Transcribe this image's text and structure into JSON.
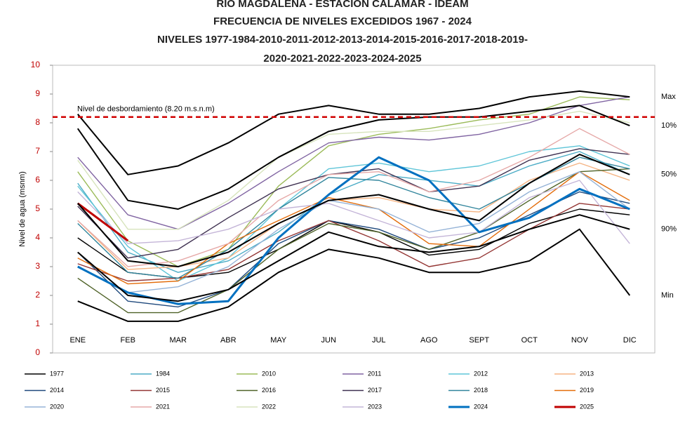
{
  "chart_data": {
    "type": "line",
    "title": [
      "RIO MAGDALENA - ESTACION CALAMAR - IDEAM",
      "FRECUENCIA DE NIVELES EXCEDIDOS 1967 - 2024",
      "NIVELES 1977-1984-2010-2011-2012-2013-2014-2015-2016-2017-2018-2019-",
      "2020-2021-2022-2023-2024-2025"
    ],
    "y_label": "Nivel de agua (msnm)",
    "categories": [
      "ENE",
      "FEB",
      "MAR",
      "ABR",
      "MAY",
      "JUN",
      "JUL",
      "AGO",
      "SEPT",
      "OCT",
      "NOV",
      "DIC"
    ],
    "ylim": [
      0,
      10
    ],
    "yticks": [
      0,
      1,
      2,
      3,
      4,
      5,
      6,
      7,
      8,
      9,
      10
    ],
    "threshold": 8.2,
    "threshold_label": "Nivel de desbordamiento (8.20 m.s.n.m)",
    "threshold_color": "#d00000",
    "reference_series": [
      {
        "name": "Max",
        "color": "#000000",
        "values": [
          8.3,
          6.2,
          6.5,
          7.3,
          8.3,
          8.6,
          8.3,
          8.3,
          8.5,
          8.9,
          9.1,
          8.9
        ]
      },
      {
        "name": "10%",
        "color": "#000000",
        "values": [
          7.8,
          5.3,
          5.0,
          5.7,
          6.8,
          7.7,
          8.1,
          8.2,
          8.2,
          8.4,
          8.6,
          7.9
        ]
      },
      {
        "name": "50%",
        "color": "#000000",
        "values": [
          5.2,
          3.2,
          3.0,
          3.5,
          4.5,
          5.3,
          5.5,
          5.0,
          4.6,
          5.9,
          6.9,
          6.2
        ]
      },
      {
        "name": "90%",
        "color": "#000000",
        "values": [
          3.5,
          2.0,
          1.8,
          2.2,
          3.2,
          4.2,
          3.7,
          3.5,
          3.7,
          4.3,
          4.8,
          4.3
        ]
      },
      {
        "name": "Min",
        "color": "#000000",
        "values": [
          1.8,
          1.1,
          1.1,
          1.6,
          2.8,
          3.6,
          3.3,
          2.8,
          2.8,
          3.2,
          4.3,
          2.0
        ]
      }
    ],
    "series": [
      {
        "name": "1977",
        "color": "#000000",
        "values": [
          4.0,
          2.8,
          2.6,
          2.8,
          3.6,
          4.6,
          4.2,
          3.4,
          3.6,
          4.5,
          5.0,
          4.8
        ]
      },
      {
        "name": "1984",
        "color": "#4bacc6",
        "values": [
          5.9,
          3.5,
          2.8,
          3.2,
          4.2,
          5.5,
          6.2,
          6.0,
          5.8,
          6.5,
          7.0,
          6.2
        ]
      },
      {
        "name": "2010",
        "color": "#9bbb59",
        "values": [
          6.3,
          3.9,
          3.0,
          3.6,
          5.8,
          7.2,
          7.6,
          7.8,
          8.1,
          8.3,
          8.9,
          8.8
        ]
      },
      {
        "name": "2011",
        "color": "#8064a2",
        "values": [
          6.8,
          4.8,
          4.3,
          5.2,
          6.3,
          7.3,
          7.5,
          7.4,
          7.6,
          8.0,
          8.6,
          8.9
        ]
      },
      {
        "name": "2012",
        "color": "#5fc5d8",
        "values": [
          5.8,
          3.7,
          2.5,
          3.3,
          5.0,
          6.4,
          6.6,
          6.3,
          6.5,
          7.0,
          7.2,
          6.5
        ]
      },
      {
        "name": "2013",
        "color": "#f5b483",
        "values": [
          4.6,
          2.9,
          3.0,
          3.3,
          4.5,
          5.3,
          5.4,
          5.0,
          4.9,
          6.0,
          6.6,
          6.0
        ]
      },
      {
        "name": "2014",
        "color": "#1f497d",
        "values": [
          3.5,
          1.8,
          1.6,
          2.2,
          3.8,
          4.6,
          4.3,
          3.6,
          4.0,
          4.8,
          5.6,
          5.2
        ]
      },
      {
        "name": "2015",
        "color": "#943634",
        "values": [
          3.1,
          2.5,
          2.6,
          2.9,
          3.9,
          4.6,
          3.9,
          3.0,
          3.3,
          4.3,
          5.2,
          5.0
        ]
      },
      {
        "name": "2016",
        "color": "#4f6228",
        "values": [
          2.6,
          1.4,
          1.4,
          2.2,
          3.6,
          4.5,
          4.2,
          3.6,
          4.2,
          5.3,
          6.3,
          6.4
        ]
      },
      {
        "name": "2017",
        "color": "#3f3151",
        "values": [
          5.1,
          3.3,
          3.6,
          4.7,
          5.7,
          6.2,
          6.4,
          5.6,
          5.8,
          6.7,
          7.1,
          6.9
        ]
      },
      {
        "name": "2018",
        "color": "#31859c",
        "values": [
          4.5,
          2.8,
          2.6,
          3.6,
          5.0,
          6.1,
          6.0,
          5.4,
          5.0,
          5.9,
          6.8,
          6.4
        ]
      },
      {
        "name": "2019",
        "color": "#e36c09",
        "values": [
          3.3,
          2.4,
          2.5,
          3.8,
          4.6,
          5.4,
          5.0,
          3.8,
          3.7,
          5.0,
          6.3,
          5.3
        ]
      },
      {
        "name": "2020",
        "color": "#95b3d7",
        "values": [
          3.0,
          2.1,
          2.3,
          3.0,
          4.3,
          5.3,
          5.0,
          4.2,
          4.5,
          5.6,
          6.3,
          5.0
        ]
      },
      {
        "name": "2021",
        "color": "#e6a9a8",
        "values": [
          4.6,
          3.0,
          3.2,
          3.8,
          5.3,
          6.2,
          6.3,
          5.6,
          6.0,
          6.8,
          7.8,
          6.9
        ]
      },
      {
        "name": "2022",
        "color": "#d7e4bd",
        "values": [
          6.7,
          4.3,
          4.3,
          5.3,
          6.8,
          7.6,
          7.7,
          7.7,
          7.9,
          8.1,
          8.4,
          8.0
        ]
      },
      {
        "name": "2023",
        "color": "#c4b5d8",
        "values": [
          5.6,
          3.8,
          3.9,
          4.3,
          5.0,
          5.2,
          4.6,
          4.0,
          4.2,
          5.4,
          6.0,
          3.8
        ]
      },
      {
        "name": "2024",
        "color": "#0070c0",
        "values": [
          3.0,
          2.1,
          1.7,
          1.8,
          4.0,
          5.5,
          6.8,
          6.0,
          4.2,
          4.7,
          5.7,
          5.0
        ]
      },
      {
        "name": "2025",
        "color": "#c00000",
        "values": [
          5.2,
          3.9,
          null,
          null,
          null,
          null,
          null,
          null,
          null,
          null,
          null,
          null
        ]
      }
    ]
  }
}
